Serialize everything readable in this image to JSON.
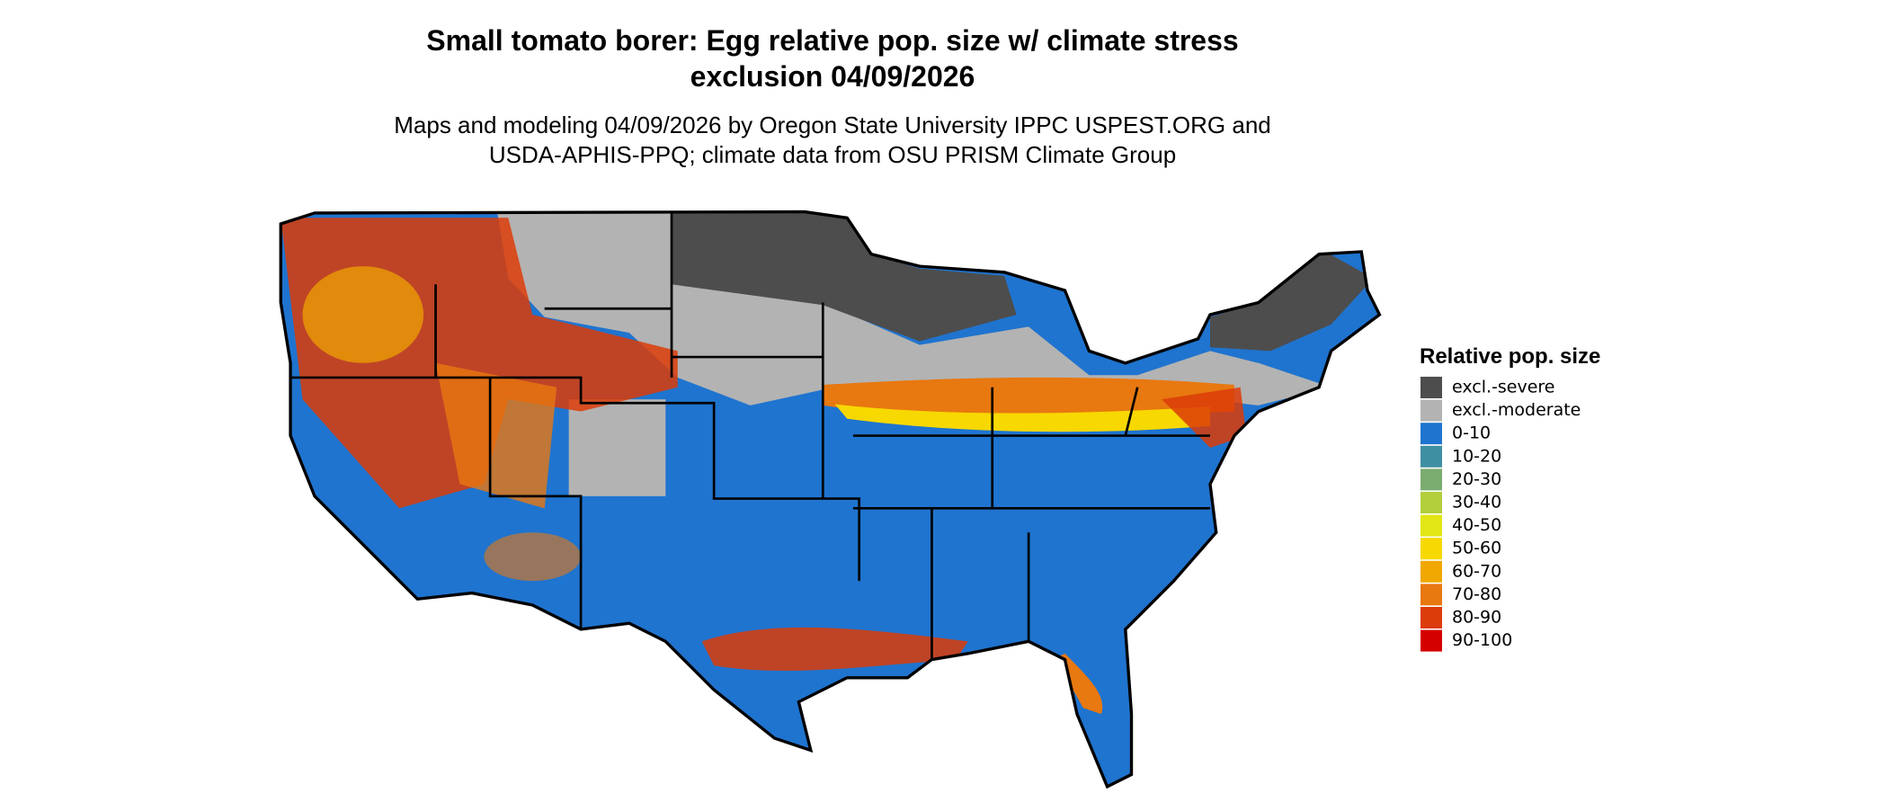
{
  "title": [
    "Small tomato borer: Egg relative pop. size w/ climate stress",
    "exclusion 04/09/2026"
  ],
  "subtitle": [
    "Maps and modeling 04/09/2026 by Oregon State University IPPC USPEST.ORG and",
    "USDA-APHIS-PPQ; climate data from OSU PRISM Climate Group"
  ],
  "legend": {
    "title": "Relative pop. size",
    "items": [
      {
        "label": "excl.-severe",
        "color": "#4d4d4d"
      },
      {
        "label": "excl.-moderate",
        "color": "#b3b3b3"
      },
      {
        "label": "0-10",
        "color": "#1f74cf"
      },
      {
        "label": "10-20",
        "color": "#3f8fa3"
      },
      {
        "label": "20-30",
        "color": "#7aac6e"
      },
      {
        "label": "30-40",
        "color": "#b3cf3c"
      },
      {
        "label": "40-50",
        "color": "#e2e614"
      },
      {
        "label": "50-60",
        "color": "#f7d800"
      },
      {
        "label": "60-70",
        "color": "#f0a800"
      },
      {
        "label": "70-80",
        "color": "#e87810"
      },
      {
        "label": "80-90",
        "color": "#dc3c08"
      },
      {
        "label": "90-100",
        "color": "#d40000"
      }
    ]
  }
}
